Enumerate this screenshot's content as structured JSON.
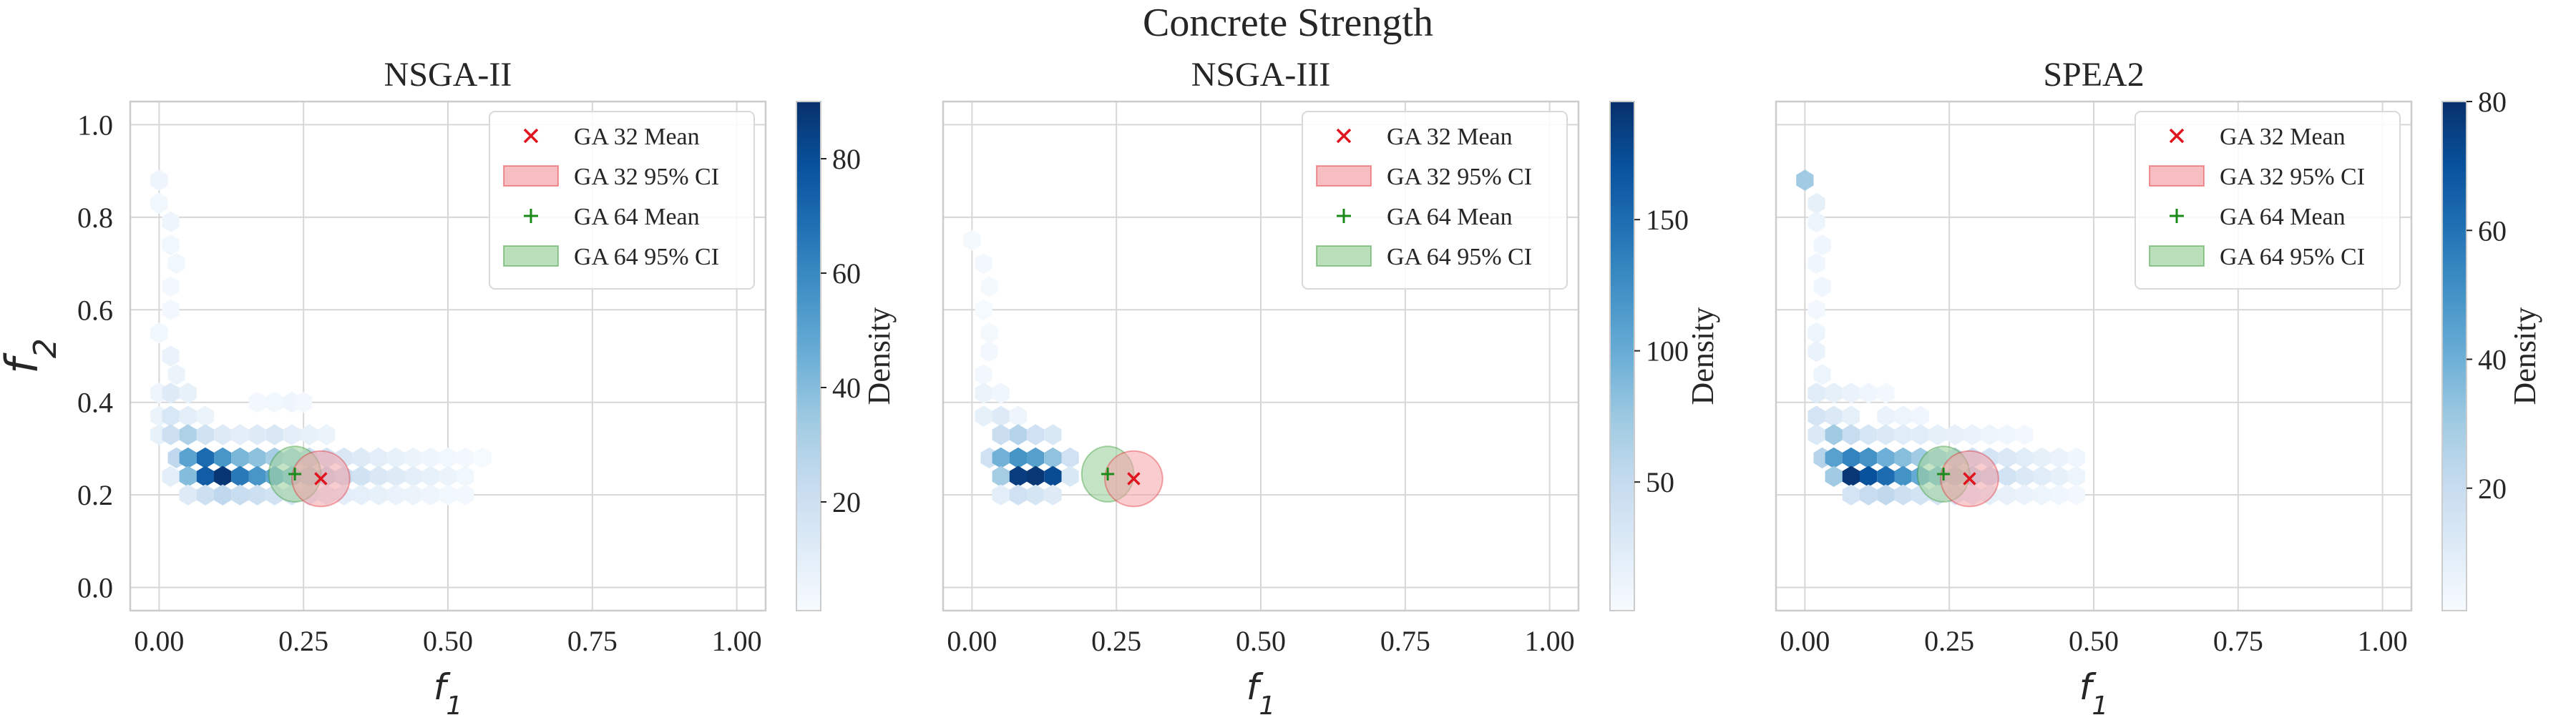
{
  "figure_title": "Concrete Strength",
  "ylabel": "f",
  "ylabel_sub": "2",
  "xlabel": "f",
  "xlabel_sub": "1",
  "colorbar_label": "Density",
  "colors": {
    "ga32": "#e0141e",
    "ga64": "#1a8a1a",
    "ci32_fill": "#f4a3a8",
    "ci64_fill": "#9ed19e",
    "grid": "#d6d6d6",
    "axis": "#cccccc",
    "text": "#262626",
    "cmap_low": "#f7fbff",
    "cmap_high": "#08306b"
  },
  "legend": [
    {
      "label": "GA 32 Mean",
      "kind": "mean32"
    },
    {
      "label": "GA 32 95% CI",
      "kind": "ci32"
    },
    {
      "label": "GA 64 Mean",
      "kind": "mean64"
    },
    {
      "label": "GA 64 95% CI",
      "kind": "ci64"
    }
  ],
  "chart_data": [
    {
      "type": "hexbin",
      "title": "NSGA-II",
      "xlim": [
        -0.05,
        1.05
      ],
      "ylim": [
        -0.05,
        1.05
      ],
      "xticks": [
        "0.00",
        "0.25",
        "0.50",
        "0.75",
        "1.00"
      ],
      "yticks": [
        "0.0",
        "0.2",
        "0.4",
        "0.6",
        "0.8",
        "1.0"
      ],
      "grid": true,
      "legend_position": "top-right",
      "colorbar": {
        "min": 1,
        "max": 90,
        "ticks": [
          20,
          40,
          60,
          80
        ]
      },
      "hexbins": [
        [
          0.0,
          0.88,
          5
        ],
        [
          0.0,
          0.83,
          4
        ],
        [
          0.02,
          0.79,
          5
        ],
        [
          0.02,
          0.74,
          4
        ],
        [
          0.03,
          0.7,
          4
        ],
        [
          0.02,
          0.65,
          3
        ],
        [
          0.02,
          0.6,
          3
        ],
        [
          0.0,
          0.55,
          4
        ],
        [
          0.02,
          0.5,
          7
        ],
        [
          0.03,
          0.46,
          6
        ],
        [
          0.0,
          0.42,
          5
        ],
        [
          0.02,
          0.42,
          12
        ],
        [
          0.05,
          0.42,
          8
        ],
        [
          0.0,
          0.37,
          6
        ],
        [
          0.02,
          0.37,
          15
        ],
        [
          0.05,
          0.37,
          10
        ],
        [
          0.08,
          0.37,
          6
        ],
        [
          0.17,
          0.4,
          3
        ],
        [
          0.2,
          0.4,
          4
        ],
        [
          0.23,
          0.4,
          5
        ],
        [
          0.25,
          0.4,
          3
        ],
        [
          0.0,
          0.33,
          8
        ],
        [
          0.02,
          0.33,
          20
        ],
        [
          0.05,
          0.33,
          30
        ],
        [
          0.08,
          0.33,
          18
        ],
        [
          0.11,
          0.33,
          12
        ],
        [
          0.14,
          0.33,
          10
        ],
        [
          0.17,
          0.33,
          12
        ],
        [
          0.2,
          0.33,
          14
        ],
        [
          0.23,
          0.33,
          10
        ],
        [
          0.26,
          0.33,
          8
        ],
        [
          0.29,
          0.33,
          6
        ],
        [
          0.03,
          0.28,
          25
        ],
        [
          0.05,
          0.28,
          50
        ],
        [
          0.08,
          0.28,
          70
        ],
        [
          0.11,
          0.28,
          55
        ],
        [
          0.14,
          0.28,
          42
        ],
        [
          0.17,
          0.28,
          38
        ],
        [
          0.2,
          0.28,
          32
        ],
        [
          0.23,
          0.28,
          28
        ],
        [
          0.26,
          0.28,
          22
        ],
        [
          0.29,
          0.28,
          18
        ],
        [
          0.32,
          0.28,
          14
        ],
        [
          0.35,
          0.28,
          12
        ],
        [
          0.38,
          0.28,
          10
        ],
        [
          0.41,
          0.28,
          8
        ],
        [
          0.44,
          0.28,
          6
        ],
        [
          0.47,
          0.28,
          5
        ],
        [
          0.5,
          0.28,
          4
        ],
        [
          0.53,
          0.28,
          3
        ],
        [
          0.56,
          0.28,
          2
        ],
        [
          0.02,
          0.24,
          10
        ],
        [
          0.05,
          0.24,
          40
        ],
        [
          0.08,
          0.24,
          75
        ],
        [
          0.11,
          0.24,
          88
        ],
        [
          0.14,
          0.24,
          65
        ],
        [
          0.17,
          0.24,
          55
        ],
        [
          0.2,
          0.24,
          48
        ],
        [
          0.23,
          0.24,
          40
        ],
        [
          0.26,
          0.24,
          32
        ],
        [
          0.29,
          0.24,
          26
        ],
        [
          0.32,
          0.24,
          22
        ],
        [
          0.35,
          0.24,
          18
        ],
        [
          0.38,
          0.24,
          14
        ],
        [
          0.41,
          0.24,
          12
        ],
        [
          0.44,
          0.24,
          10
        ],
        [
          0.47,
          0.24,
          8
        ],
        [
          0.5,
          0.24,
          6
        ],
        [
          0.53,
          0.24,
          4
        ],
        [
          0.05,
          0.2,
          12
        ],
        [
          0.08,
          0.2,
          20
        ],
        [
          0.11,
          0.2,
          25
        ],
        [
          0.14,
          0.2,
          22
        ],
        [
          0.17,
          0.2,
          20
        ],
        [
          0.2,
          0.2,
          18
        ],
        [
          0.23,
          0.2,
          16
        ],
        [
          0.26,
          0.2,
          14
        ],
        [
          0.29,
          0.2,
          12
        ],
        [
          0.32,
          0.2,
          10
        ],
        [
          0.35,
          0.2,
          9
        ],
        [
          0.38,
          0.2,
          8
        ],
        [
          0.41,
          0.2,
          7
        ],
        [
          0.44,
          0.2,
          6
        ],
        [
          0.47,
          0.2,
          5
        ],
        [
          0.5,
          0.2,
          4
        ],
        [
          0.53,
          0.2,
          3
        ]
      ],
      "ga32": {
        "mean": [
          0.28,
          0.235
        ],
        "ci_half": [
          0.05,
          0.06
        ]
      },
      "ga64": {
        "mean": [
          0.235,
          0.245
        ],
        "ci_half": [
          0.045,
          0.06
        ]
      }
    },
    {
      "type": "hexbin",
      "title": "NSGA-III",
      "xlim": [
        -0.05,
        1.05
      ],
      "ylim": [
        -0.05,
        1.05
      ],
      "xticks": [
        "0.00",
        "0.25",
        "0.50",
        "0.75",
        "1.00"
      ],
      "yticks": [],
      "grid": true,
      "legend_position": "top-right",
      "colorbar": {
        "min": 1,
        "max": 195,
        "ticks": [
          50,
          100,
          150
        ]
      },
      "hexbins": [
        [
          0.0,
          0.75,
          4
        ],
        [
          0.02,
          0.7,
          5
        ],
        [
          0.03,
          0.65,
          4
        ],
        [
          0.02,
          0.6,
          3
        ],
        [
          0.03,
          0.55,
          4
        ],
        [
          0.03,
          0.51,
          5
        ],
        [
          0.02,
          0.46,
          6
        ],
        [
          0.02,
          0.42,
          12
        ],
        [
          0.05,
          0.42,
          8
        ],
        [
          0.02,
          0.37,
          18
        ],
        [
          0.05,
          0.37,
          25
        ],
        [
          0.08,
          0.37,
          10
        ],
        [
          0.05,
          0.33,
          45
        ],
        [
          0.08,
          0.33,
          60
        ],
        [
          0.11,
          0.33,
          40
        ],
        [
          0.14,
          0.33,
          30
        ],
        [
          0.03,
          0.28,
          40
        ],
        [
          0.05,
          0.28,
          95
        ],
        [
          0.08,
          0.28,
          120
        ],
        [
          0.11,
          0.28,
          110
        ],
        [
          0.14,
          0.28,
          80
        ],
        [
          0.17,
          0.28,
          40
        ],
        [
          0.05,
          0.24,
          70
        ],
        [
          0.08,
          0.24,
          185
        ],
        [
          0.11,
          0.24,
          190
        ],
        [
          0.14,
          0.24,
          175
        ],
        [
          0.17,
          0.24,
          30
        ],
        [
          0.05,
          0.2,
          20
        ],
        [
          0.08,
          0.2,
          40
        ],
        [
          0.11,
          0.2,
          35
        ],
        [
          0.14,
          0.2,
          25
        ]
      ],
      "ga32": {
        "mean": [
          0.28,
          0.235
        ],
        "ci_half": [
          0.05,
          0.06
        ]
      },
      "ga64": {
        "mean": [
          0.235,
          0.245
        ],
        "ci_half": [
          0.045,
          0.06
        ]
      }
    },
    {
      "type": "hexbin",
      "title": "SPEA2",
      "xlim": [
        -0.05,
        1.05
      ],
      "ylim": [
        -0.05,
        1.05
      ],
      "xticks": [
        "0.00",
        "0.25",
        "0.50",
        "0.75",
        "1.00"
      ],
      "yticks": [],
      "grid": true,
      "legend_position": "top-right",
      "colorbar": {
        "min": 1,
        "max": 80,
        "ticks": [
          20,
          40,
          60,
          80
        ]
      },
      "hexbins": [
        [
          0.0,
          0.88,
          30
        ],
        [
          0.02,
          0.83,
          8
        ],
        [
          0.02,
          0.79,
          5
        ],
        [
          0.03,
          0.74,
          4
        ],
        [
          0.02,
          0.7,
          4
        ],
        [
          0.03,
          0.65,
          4
        ],
        [
          0.02,
          0.6,
          3
        ],
        [
          0.02,
          0.55,
          5
        ],
        [
          0.02,
          0.51,
          6
        ],
        [
          0.03,
          0.46,
          5
        ],
        [
          0.02,
          0.42,
          10
        ],
        [
          0.05,
          0.42,
          8
        ],
        [
          0.08,
          0.42,
          6
        ],
        [
          0.11,
          0.42,
          4
        ],
        [
          0.14,
          0.42,
          3
        ],
        [
          0.02,
          0.37,
          15
        ],
        [
          0.05,
          0.37,
          12
        ],
        [
          0.08,
          0.37,
          8
        ],
        [
          0.14,
          0.37,
          6
        ],
        [
          0.17,
          0.37,
          5
        ],
        [
          0.2,
          0.37,
          4
        ],
        [
          0.02,
          0.33,
          12
        ],
        [
          0.05,
          0.33,
          30
        ],
        [
          0.08,
          0.33,
          20
        ],
        [
          0.11,
          0.33,
          14
        ],
        [
          0.14,
          0.33,
          12
        ],
        [
          0.17,
          0.33,
          10
        ],
        [
          0.2,
          0.33,
          10
        ],
        [
          0.23,
          0.33,
          8
        ],
        [
          0.26,
          0.33,
          7
        ],
        [
          0.29,
          0.33,
          6
        ],
        [
          0.32,
          0.33,
          5
        ],
        [
          0.35,
          0.33,
          4
        ],
        [
          0.38,
          0.33,
          3
        ],
        [
          0.03,
          0.28,
          25
        ],
        [
          0.05,
          0.28,
          45
        ],
        [
          0.08,
          0.28,
          55
        ],
        [
          0.11,
          0.28,
          50
        ],
        [
          0.14,
          0.28,
          40
        ],
        [
          0.17,
          0.28,
          35
        ],
        [
          0.2,
          0.28,
          30
        ],
        [
          0.23,
          0.28,
          26
        ],
        [
          0.26,
          0.28,
          22
        ],
        [
          0.29,
          0.28,
          18
        ],
        [
          0.32,
          0.28,
          15
        ],
        [
          0.35,
          0.28,
          12
        ],
        [
          0.38,
          0.28,
          10
        ],
        [
          0.41,
          0.28,
          8
        ],
        [
          0.44,
          0.28,
          6
        ],
        [
          0.47,
          0.28,
          4
        ],
        [
          0.05,
          0.24,
          30
        ],
        [
          0.08,
          0.24,
          78
        ],
        [
          0.11,
          0.24,
          70
        ],
        [
          0.14,
          0.24,
          62
        ],
        [
          0.17,
          0.24,
          50
        ],
        [
          0.2,
          0.24,
          42
        ],
        [
          0.23,
          0.24,
          36
        ],
        [
          0.26,
          0.24,
          30
        ],
        [
          0.29,
          0.24,
          25
        ],
        [
          0.32,
          0.24,
          20
        ],
        [
          0.35,
          0.24,
          16
        ],
        [
          0.38,
          0.24,
          12
        ],
        [
          0.41,
          0.24,
          10
        ],
        [
          0.44,
          0.24,
          8
        ],
        [
          0.47,
          0.24,
          5
        ],
        [
          0.08,
          0.2,
          15
        ],
        [
          0.11,
          0.2,
          20
        ],
        [
          0.14,
          0.2,
          22
        ],
        [
          0.17,
          0.2,
          18
        ],
        [
          0.2,
          0.2,
          16
        ],
        [
          0.23,
          0.2,
          14
        ],
        [
          0.26,
          0.2,
          12
        ],
        [
          0.29,
          0.2,
          10
        ],
        [
          0.32,
          0.2,
          8
        ],
        [
          0.35,
          0.2,
          7
        ],
        [
          0.38,
          0.2,
          6
        ],
        [
          0.41,
          0.2,
          5
        ],
        [
          0.44,
          0.2,
          4
        ],
        [
          0.47,
          0.2,
          3
        ]
      ],
      "ga32": {
        "mean": [
          0.285,
          0.235
        ],
        "ci_half": [
          0.05,
          0.06
        ]
      },
      "ga64": {
        "mean": [
          0.24,
          0.245
        ],
        "ci_half": [
          0.045,
          0.06
        ]
      }
    }
  ]
}
